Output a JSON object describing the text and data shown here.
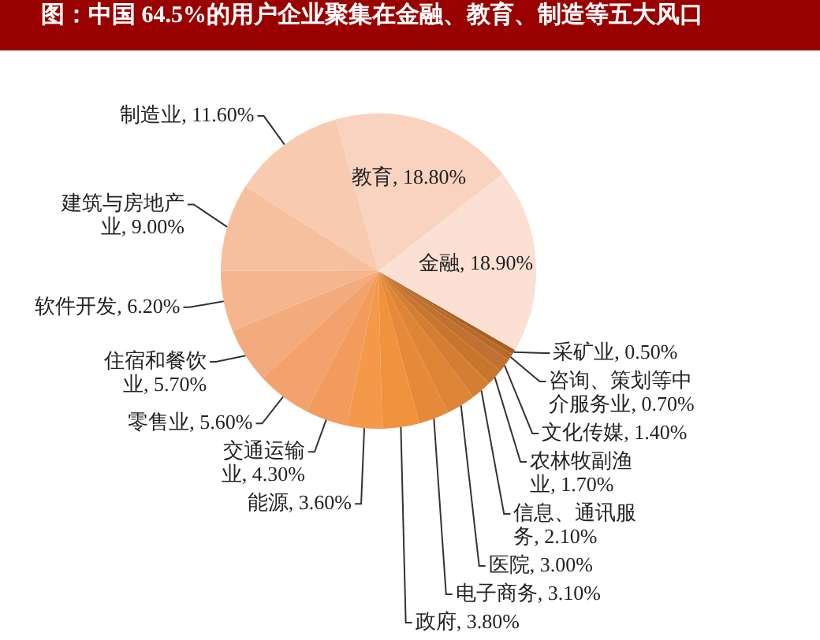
{
  "chart_data": {
    "type": "pie",
    "title": "图：中国 64.5%的用户企业聚集在金融、教育、制造等五大风口",
    "categories": [
      "采矿业",
      "咨询、策划等中介服务业",
      "文化传媒",
      "农林牧副渔业",
      "信息、通讯服务",
      "医院",
      "电子商务",
      "政府",
      "能源",
      "交通运输业",
      "零售业",
      "住宿和餐饮业",
      "软件开发",
      "建筑与房地产业",
      "制造业",
      "教育",
      "金融"
    ],
    "values": [
      0.5,
      0.7,
      1.4,
      1.7,
      2.1,
      3.0,
      3.1,
      3.8,
      3.6,
      4.3,
      5.6,
      5.7,
      6.2,
      9.0,
      11.6,
      18.8,
      18.9
    ],
    "value_labels": [
      "0.50%",
      "0.70%",
      "1.40%",
      "1.70%",
      "2.10%",
      "3.00%",
      "3.10%",
      "3.80%",
      "3.60%",
      "4.30%",
      "5.60%",
      "5.70%",
      "6.20%",
      "9.00%",
      "11.60%",
      "18.80%",
      "18.90%"
    ],
    "colors": [
      "#a85f22",
      "#b86a2a",
      "#c07030",
      "#c8762d",
      "#d37e32",
      "#dd8535",
      "#e68a3a",
      "#f0923e",
      "#f4984a",
      "#f39b5c",
      "#f3a26d",
      "#f3aa7c",
      "#f5b68f",
      "#f6c09e",
      "#f8cbb0",
      "#f9d3bf",
      "#fbe0d3"
    ]
  }
}
